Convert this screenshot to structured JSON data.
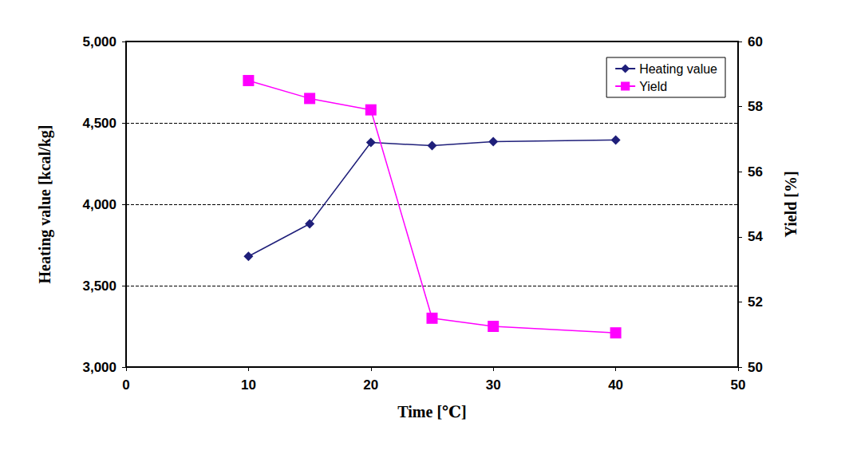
{
  "chart_data": {
    "type": "line",
    "x_label": "Time [℃]",
    "y_label": "Heating value [kcal/kg]",
    "y2_label": "Yield [%]",
    "x": [
      10,
      15,
      20,
      25,
      30,
      40
    ],
    "series": [
      {
        "name": "Heating value",
        "color": "#1f1f7a",
        "marker": "diamond",
        "values": [
          3680,
          3880,
          4380,
          4360,
          4385,
          4395
        ]
      },
      {
        "name": "Yield",
        "color": "#ff00ff",
        "marker": "square",
        "axis": "y2",
        "values": [
          58.8,
          58.25,
          57.9,
          51.5,
          51.25,
          51.05
        ]
      }
    ],
    "xlim": [
      0,
      50
    ],
    "xticks": [
      0,
      10,
      20,
      30,
      40,
      50
    ],
    "ylim": [
      3000,
      5000
    ],
    "yticks": [
      3000,
      3500,
      4000,
      4500,
      5000
    ],
    "y2lim": [
      50,
      60
    ],
    "y2ticks": [
      50,
      52,
      54,
      56,
      58,
      60
    ],
    "grid": true,
    "legend": "top-right"
  }
}
